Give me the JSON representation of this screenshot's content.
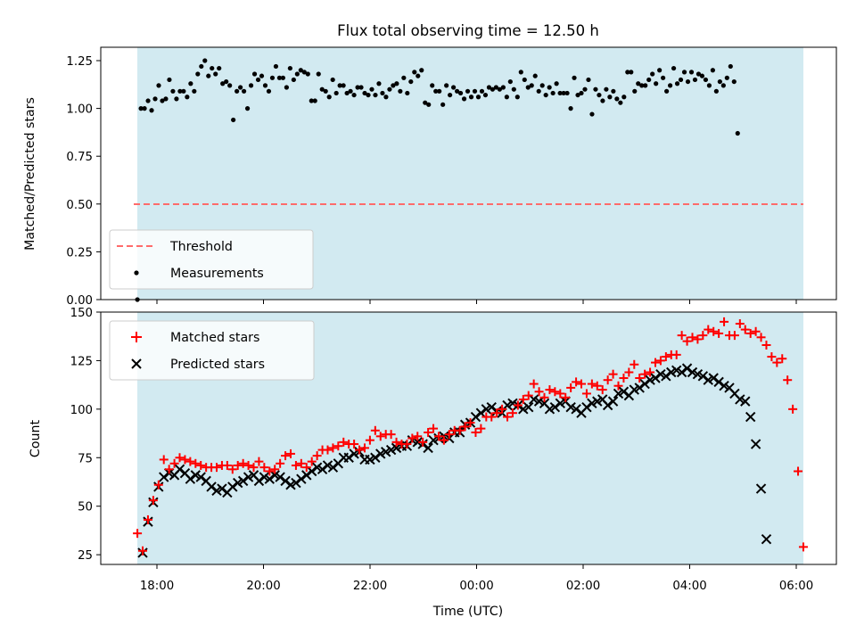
{
  "chart_data": [
    {
      "type": "scatter",
      "title": "Flux total observing time = 12.50 h",
      "xlabel": "",
      "ylabel": "Matched/Predicted stars",
      "ylim": [
        0,
        1.32
      ],
      "yticks": [
        "0.00",
        "0.25",
        "0.50",
        "0.75",
        "1.00",
        "1.25"
      ],
      "legend": {
        "placement": "lower-left",
        "entries": [
          "Threshold",
          "Measurements"
        ]
      },
      "threshold": 0.5,
      "colors": {
        "threshold": "#ff6b6b",
        "measurements": "#000000",
        "shade": "#add8e6"
      },
      "x_start": "17:38",
      "x_end": "06:08",
      "sample_step_min": 4,
      "series": [
        {
          "name": "Measurements",
          "values": [
            0.0,
            1.0,
            1.0,
            1.04,
            0.99,
            1.05,
            1.12,
            1.04,
            1.05,
            1.15,
            1.09,
            1.05,
            1.09,
            1.09,
            1.06,
            1.13,
            1.09,
            1.18,
            1.22,
            1.25,
            1.17,
            1.21,
            1.18,
            1.21,
            1.13,
            1.14,
            1.12,
            0.94,
            1.09,
            1.11,
            1.09,
            1.0,
            1.12,
            1.18,
            1.15,
            1.17,
            1.12,
            1.09,
            1.16,
            1.22,
            1.16,
            1.16,
            1.11,
            1.21,
            1.15,
            1.18,
            1.2,
            1.19,
            1.18,
            1.04,
            1.04,
            1.18,
            1.1,
            1.09,
            1.06,
            1.15,
            1.08,
            1.12,
            1.12,
            1.08,
            1.09,
            1.07,
            1.11,
            1.11,
            1.08,
            1.07,
            1.1,
            1.07,
            1.13,
            1.08,
            1.06,
            1.1,
            1.12,
            1.13,
            1.09,
            1.16,
            1.08,
            1.14,
            1.19,
            1.17,
            1.2,
            1.03,
            1.02,
            1.12,
            1.09,
            1.09,
            1.02,
            1.12,
            1.07,
            1.11,
            1.09,
            1.08,
            1.05,
            1.09,
            1.06,
            1.09,
            1.06,
            1.09,
            1.07,
            1.11,
            1.1,
            1.11,
            1.1,
            1.11,
            1.06,
            1.14,
            1.1,
            1.06,
            1.19,
            1.15,
            1.11,
            1.12,
            1.17,
            1.09,
            1.12,
            1.07,
            1.11,
            1.08,
            1.13,
            1.08,
            1.08,
            1.08,
            1.0,
            1.16,
            1.07,
            1.08,
            1.1,
            1.15,
            0.97,
            1.1,
            1.07,
            1.04,
            1.1,
            1.06,
            1.09,
            1.05,
            1.03,
            1.06,
            1.19,
            1.19,
            1.09,
            1.13,
            1.12,
            1.12,
            1.15,
            1.18,
            1.13,
            1.2,
            1.16,
            1.09,
            1.12,
            1.21,
            1.13,
            1.15,
            1.19,
            1.14,
            1.19,
            1.15,
            1.18,
            1.17,
            1.15,
            1.12,
            1.2,
            1.09,
            1.14,
            1.12,
            1.16,
            1.22,
            1.14,
            0.87
          ]
        }
      ]
    },
    {
      "type": "scatter",
      "title": "",
      "xlabel": "Time (UTC)",
      "ylabel": "Count",
      "ylim": [
        20,
        150
      ],
      "yticks": [
        "25",
        "50",
        "75",
        "100",
        "125",
        "150"
      ],
      "xticks": [
        "18:00",
        "20:00",
        "22:00",
        "00:00",
        "02:00",
        "04:00",
        "06:00"
      ],
      "legend": {
        "placement": "upper-left",
        "entries": [
          "Matched stars",
          "Predicted stars"
        ]
      },
      "colors": {
        "matched": "#ff0000",
        "predicted": "#000000",
        "shade": "#add8e6"
      },
      "x_start": "17:38",
      "x_end": "06:08",
      "sample_step_min": 4,
      "series": [
        {
          "name": "Matched stars",
          "values": [
            36,
            27,
            43,
            53,
            61,
            74,
            69,
            72,
            75,
            74,
            73,
            72,
            71,
            70,
            70,
            70,
            71,
            71,
            69,
            71,
            72,
            71,
            70,
            73,
            70,
            68,
            69,
            72,
            76,
            77,
            71,
            72,
            70,
            73,
            76,
            79,
            79,
            80,
            81,
            83,
            82,
            82,
            79,
            80,
            84,
            89,
            86,
            87,
            87,
            83,
            82,
            82,
            85,
            86,
            83,
            88,
            90,
            86,
            84,
            87,
            89,
            89,
            91,
            93,
            88,
            90,
            96,
            96,
            98,
            100,
            96,
            98,
            102,
            105,
            107,
            113,
            109,
            106,
            110,
            109,
            108,
            106,
            111,
            114,
            113,
            108,
            113,
            112,
            110,
            115,
            118,
            112,
            116,
            119,
            123,
            116,
            118,
            119,
            124,
            125,
            127,
            128,
            128,
            138,
            135,
            137,
            136,
            138,
            141,
            140,
            139,
            145,
            138,
            138,
            144,
            141,
            139,
            140,
            137,
            133,
            127,
            124,
            126,
            115,
            100,
            68,
            29,
            null,
            null,
            null,
            null,
            null,
            null,
            null,
            null,
            null,
            null,
            null,
            null,
            null,
            null,
            null,
            null,
            null,
            null,
            null,
            null,
            null,
            null,
            null,
            null,
            null,
            null,
            null,
            null,
            null,
            null,
            null,
            null,
            null,
            null,
            null,
            null,
            null,
            null,
            null,
            null,
            null,
            null,
            null,
            null,
            null,
            null,
            null,
            null,
            null,
            null,
            null,
            null,
            null,
            null,
            null,
            null,
            null,
            null,
            null,
            null,
            null,
            null,
            null,
            null,
            null,
            null,
            null
          ]
        },
        {
          "name": "Predicted stars",
          "values": [
            null,
            26,
            42,
            52,
            60,
            65,
            67,
            66,
            69,
            67,
            64,
            66,
            65,
            63,
            60,
            58,
            59,
            57,
            60,
            62,
            63,
            65,
            66,
            63,
            65,
            64,
            66,
            65,
            63,
            61,
            62,
            64,
            66,
            68,
            70,
            69,
            71,
            70,
            72,
            75,
            75,
            77,
            78,
            74,
            74,
            75,
            77,
            78,
            79,
            80,
            81,
            81,
            84,
            83,
            82,
            80,
            84,
            85,
            86,
            85,
            88,
            88,
            92,
            93,
            96,
            98,
            100,
            101,
            99,
            98,
            102,
            103,
            102,
            100,
            101,
            105,
            104,
            103,
            100,
            101,
            103,
            104,
            101,
            100,
            98,
            101,
            103,
            104,
            105,
            102,
            104,
            108,
            109,
            107,
            110,
            111,
            113,
            115,
            116,
            118,
            117,
            119,
            120,
            119,
            121,
            119,
            118,
            117,
            115,
            116,
            114,
            112,
            111,
            108,
            105,
            104,
            96,
            82,
            59,
            33,
            null,
            null,
            null,
            null,
            null,
            null,
            null,
            null,
            null,
            null,
            null,
            null,
            null,
            null,
            null,
            null,
            null,
            null,
            null,
            null,
            null,
            null,
            null,
            null,
            null,
            null,
            null,
            null,
            null,
            null,
            null,
            null,
            null,
            null,
            null,
            null,
            null,
            null,
            null,
            null,
            null,
            null,
            null,
            null,
            null,
            null,
            null,
            null,
            null,
            null,
            null,
            null,
            null,
            null,
            null,
            null,
            null,
            null,
            null,
            null,
            null,
            null,
            null,
            null,
            null,
            null,
            null,
            null,
            null,
            null,
            null,
            null,
            null
          ]
        }
      ]
    }
  ]
}
